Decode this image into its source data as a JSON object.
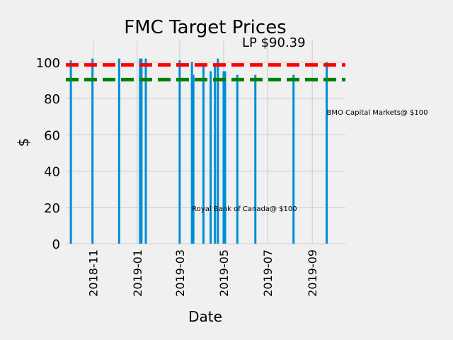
{
  "chart_data": {
    "type": "bar",
    "title": "FMC Target Prices",
    "xlabel": "Date",
    "ylabel": "$",
    "ylim": [
      0,
      112
    ],
    "xlim": [
      "2018-09-24",
      "2019-10-17"
    ],
    "yticks": [
      0,
      20,
      40,
      60,
      80,
      100
    ],
    "xticks": [
      {
        "date": "2018-11-01",
        "label": "2018-11"
      },
      {
        "date": "2019-01-01",
        "label": "2019-01"
      },
      {
        "date": "2019-03-01",
        "label": "2019-03"
      },
      {
        "date": "2019-05-01",
        "label": "2019-05"
      },
      {
        "date": "2019-07-01",
        "label": "2019-07"
      },
      {
        "date": "2019-09-01",
        "label": "2019-09"
      }
    ],
    "grid": true,
    "bar_color": "#008fd5",
    "bars": [
      {
        "date": "2018-10-01",
        "value": 101
      },
      {
        "date": "2018-10-31",
        "value": 102
      },
      {
        "date": "2018-12-07",
        "value": 102
      },
      {
        "date": "2019-01-05",
        "value": 102
      },
      {
        "date": "2019-01-07",
        "value": 102
      },
      {
        "date": "2019-01-13",
        "value": 102
      },
      {
        "date": "2019-03-01",
        "value": 101
      },
      {
        "date": "2019-03-18",
        "value": 100
      },
      {
        "date": "2019-03-20",
        "value": 93
      },
      {
        "date": "2019-04-03",
        "value": 99
      },
      {
        "date": "2019-04-13",
        "value": 95
      },
      {
        "date": "2019-04-19",
        "value": 98
      },
      {
        "date": "2019-04-23",
        "value": 102
      },
      {
        "date": "2019-05-01",
        "value": 95
      },
      {
        "date": "2019-05-03",
        "value": 95
      },
      {
        "date": "2019-05-20",
        "value": 93
      },
      {
        "date": "2019-06-14",
        "value": 93
      },
      {
        "date": "2019-08-06",
        "value": 93
      },
      {
        "date": "2019-09-21",
        "value": 100
      }
    ],
    "reference_lines": [
      {
        "value": 98.5,
        "color": "#ff0000"
      },
      {
        "value": 90.39,
        "color": "#008000",
        "label": "LP $90.39"
      }
    ],
    "annotations": [
      {
        "text": "BMO Capital Markets@ $100",
        "date": "2019-09-21",
        "value": 71
      },
      {
        "text": "Royal Bank of Canada@ $100",
        "date": "2019-03-18",
        "value": 18
      }
    ]
  }
}
